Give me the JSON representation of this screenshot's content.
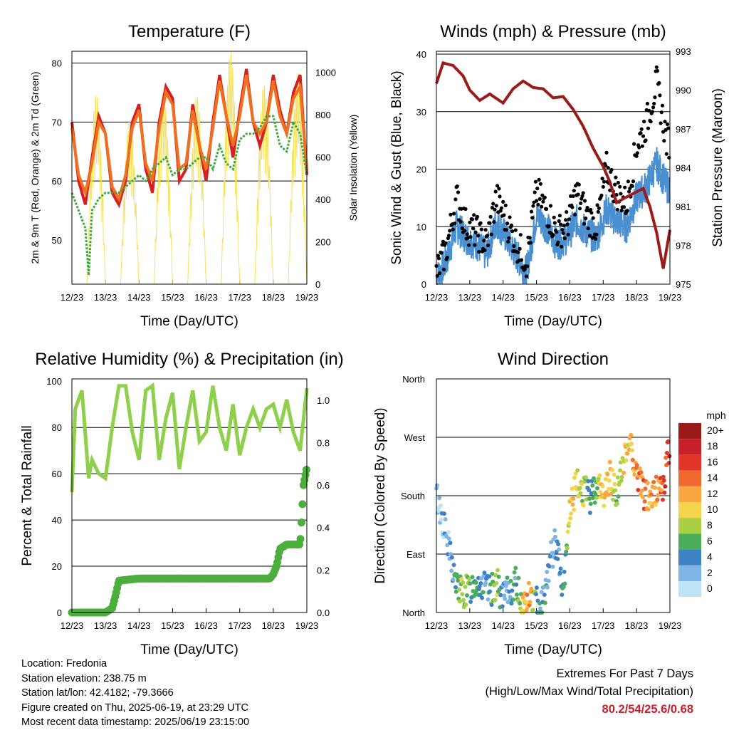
{
  "chart_data": [
    {
      "type": "line",
      "title": "Temperature (F)",
      "xlabel": "Time (Day/UTC)",
      "ylabel": "2m & 9m T (Red, Orange) & 2m Td (Green)",
      "y2label": "Solar Insolation (Yellow)",
      "x_ticks": [
        "12/23",
        "13/23",
        "14/23",
        "15/23",
        "16/23",
        "17/23",
        "18/23",
        "19/23"
      ],
      "y_ticks": [
        50,
        60,
        70,
        80
      ],
      "y2_ticks": [
        0,
        200,
        400,
        600,
        800,
        1000
      ],
      "ylim": [
        42.5,
        82
      ],
      "y2lim": [
        0,
        1100
      ],
      "grid": "horizontal at 60, 70, 80",
      "series": [
        {
          "name": "2m T",
          "color": "#d42020",
          "x": [
            0,
            0.2,
            0.4,
            0.6,
            0.8,
            1.0,
            1.2,
            1.4,
            1.6,
            1.8,
            2.0,
            2.2,
            2.4,
            2.6,
            2.8,
            3.0,
            3.2,
            3.4,
            3.6,
            3.8,
            4.0,
            4.2,
            4.4,
            4.6,
            4.8,
            5.0,
            5.2,
            5.4,
            5.6,
            5.8,
            6.0,
            6.2,
            6.4,
            6.6,
            6.8,
            7.0
          ],
          "y": [
            70,
            60,
            56,
            64,
            71,
            68,
            58,
            56,
            60,
            70,
            73,
            62,
            58,
            70,
            76,
            74,
            60,
            62,
            73,
            66,
            60,
            70,
            78,
            71,
            64,
            72,
            79,
            70,
            66,
            70,
            78,
            72,
            68,
            75,
            78,
            61
          ]
        },
        {
          "name": "9m T",
          "color": "#f07020",
          "x": [
            0,
            0.2,
            0.4,
            0.6,
            0.8,
            1.0,
            1.2,
            1.4,
            1.6,
            1.8,
            2.0,
            2.2,
            2.4,
            2.6,
            2.8,
            3.0,
            3.2,
            3.4,
            3.6,
            3.8,
            4.0,
            4.2,
            4.4,
            4.6,
            4.8,
            5.0,
            5.2,
            5.4,
            5.6,
            5.8,
            6.0,
            6.2,
            6.4,
            6.6,
            6.8,
            7.0
          ],
          "y": [
            69,
            61,
            58,
            63,
            70,
            68,
            59,
            57,
            61,
            69,
            72,
            63,
            60,
            69,
            75,
            73,
            62,
            63,
            72,
            66,
            62,
            69,
            77,
            71,
            66,
            71,
            78,
            70,
            68,
            70,
            77,
            71,
            68,
            74,
            76,
            62
          ]
        },
        {
          "name": "2m Td",
          "color": "#3daa3a",
          "x": [
            0,
            0.2,
            0.4,
            0.5,
            0.6,
            0.8,
            1.0,
            1.2,
            1.4,
            1.6,
            1.8,
            2.0,
            2.2,
            2.4,
            2.6,
            2.8,
            3.0,
            3.2,
            3.4,
            3.6,
            3.8,
            4.0,
            4.2,
            4.4,
            4.6,
            4.8,
            5.0,
            5.2,
            5.4,
            5.6,
            5.8,
            6.0,
            6.2,
            6.4,
            6.6,
            6.8,
            7.0
          ],
          "y": [
            58,
            55,
            52,
            44,
            55,
            57,
            58,
            58,
            58,
            59,
            60,
            61,
            60,
            62,
            63,
            64,
            61,
            62,
            62,
            63,
            64,
            64,
            62,
            66,
            63,
            62,
            67,
            68,
            68,
            69,
            71,
            71,
            66,
            65,
            70,
            68,
            61
          ]
        },
        {
          "name": "Solar Insolation",
          "color": "#f6e15a",
          "axis": "y2",
          "x": [
            0,
            0.5,
            1.0,
            1.5,
            2.0,
            2.5,
            3.0,
            3.5,
            4.0,
            4.5,
            5.0,
            5.5,
            6.0,
            6.5,
            7.0
          ],
          "y": [
            0,
            900,
            50,
            780,
            0,
            920,
            0,
            900,
            0,
            1100,
            0,
            950,
            0,
            1000,
            50
          ]
        }
      ]
    },
    {
      "type": "scatter",
      "title": "Winds (mph) & Pressure (mb)",
      "xlabel": "Time (Day/UTC)",
      "ylabel": "Sonic Wind & Gust (Blue, Black)",
      "y2label": "Station Pressure (Maroon)",
      "x_ticks": [
        "12/23",
        "13/23",
        "14/23",
        "15/23",
        "16/23",
        "17/23",
        "18/23",
        "19/23"
      ],
      "y_ticks": [
        0,
        10,
        20,
        30,
        40
      ],
      "y2_ticks": [
        975,
        978,
        981,
        984,
        987,
        990,
        993
      ],
      "ylim": [
        0,
        40.5
      ],
      "y2lim": [
        975,
        993
      ],
      "grid": "horizontal at 10, 20, 30, 40",
      "series": [
        {
          "name": "Gust",
          "color": "#000000",
          "x": [
            0,
            0.3,
            0.6,
            0.9,
            1.2,
            1.5,
            1.8,
            2.1,
            2.4,
            2.7,
            3.0,
            3.3,
            3.6,
            3.9,
            4.2,
            4.5,
            4.8,
            5.1,
            5.4,
            5.7,
            6.0,
            6.3,
            6.6,
            6.9
          ],
          "y": [
            2,
            6,
            15,
            10,
            9,
            7,
            15,
            11,
            7,
            4,
            16,
            13,
            9,
            10,
            16,
            12,
            10,
            20,
            16,
            14,
            24,
            28,
            35,
            25
          ]
        },
        {
          "name": "Wind",
          "color": "#4a8fd0",
          "x": [
            0,
            0.3,
            0.6,
            0.9,
            1.2,
            1.5,
            1.8,
            2.1,
            2.4,
            2.7,
            3.0,
            3.3,
            3.6,
            3.9,
            4.2,
            4.5,
            4.8,
            5.1,
            5.4,
            5.7,
            6.0,
            6.3,
            6.6,
            6.9
          ],
          "y": [
            1,
            4,
            10,
            8,
            7,
            5,
            11,
            8,
            5,
            2,
            12,
            10,
            7,
            8,
            11,
            9,
            8,
            13,
            11,
            10,
            15,
            17,
            21,
            17
          ]
        },
        {
          "name": "Station Pressure",
          "color": "#9b1b1b",
          "axis": "y2",
          "x": [
            0,
            0.2,
            0.5,
            0.8,
            1.0,
            1.3,
            1.6,
            2.0,
            2.3,
            2.6,
            2.9,
            3.2,
            3.5,
            3.8,
            4.1,
            4.4,
            4.7,
            5.0,
            5.2,
            5.4,
            5.6,
            5.9,
            6.2,
            6.4,
            6.6,
            6.8,
            7.0
          ],
          "y": [
            990.5,
            992.1,
            991.9,
            991.1,
            990.0,
            989.2,
            989.7,
            989.0,
            990.1,
            990.7,
            990.2,
            990.1,
            989.4,
            989.5,
            988.5,
            987.2,
            985.5,
            984.1,
            982.9,
            981.3,
            981.6,
            982.0,
            982.4,
            981.0,
            979.0,
            976.2,
            979.2
          ]
        }
      ]
    },
    {
      "type": "line",
      "title": "Relative Humidity (%) & Precipitation (in)",
      "xlabel": "Time (Day/UTC)",
      "ylabel": "Percent & Total Rainfall",
      "x_ticks": [
        "12/23",
        "13/23",
        "14/23",
        "15/23",
        "16/23",
        "17/23",
        "18/23",
        "19/23"
      ],
      "y_ticks": [
        0,
        20,
        40,
        60,
        80,
        100
      ],
      "y2_ticks": [
        "0.0",
        "0.2",
        "0.4",
        "0.6",
        "0.8",
        "1.0"
      ],
      "ylim": [
        0,
        101
      ],
      "y2lim": [
        0,
        1.1
      ],
      "grid": "horizontal at 20, 40, 60, 80",
      "series": [
        {
          "name": "Relative Humidity",
          "color": "#8ecf4b",
          "x": [
            0,
            0.1,
            0.3,
            0.5,
            0.6,
            0.8,
            1.0,
            1.2,
            1.4,
            1.6,
            1.8,
            2.0,
            2.2,
            2.4,
            2.6,
            2.8,
            3.0,
            3.2,
            3.4,
            3.6,
            3.8,
            4.0,
            4.2,
            4.4,
            4.6,
            4.8,
            5.0,
            5.2,
            5.4,
            5.6,
            5.8,
            6.0,
            6.2,
            6.4,
            6.6,
            6.8,
            7.0
          ],
          "y": [
            52,
            88,
            96,
            58,
            66,
            60,
            58,
            80,
            98,
            98,
            78,
            66,
            96,
            98,
            66,
            84,
            95,
            62,
            80,
            96,
            74,
            78,
            98,
            80,
            70,
            90,
            68,
            80,
            88,
            80,
            88,
            90,
            80,
            92,
            78,
            70,
            97
          ]
        },
        {
          "name": "Total Precipitation",
          "color": "#4caf3d",
          "axis": "y2",
          "x": [
            0,
            1.0,
            1.2,
            1.3,
            1.4,
            2.0,
            3.0,
            4.0,
            5.0,
            5.9,
            6.0,
            6.1,
            6.2,
            6.4,
            6.6,
            6.8,
            6.85,
            6.9,
            7.0
          ],
          "y": [
            0.0,
            0.0,
            0.02,
            0.08,
            0.15,
            0.16,
            0.16,
            0.16,
            0.16,
            0.16,
            0.18,
            0.22,
            0.3,
            0.32,
            0.32,
            0.32,
            0.45,
            0.6,
            0.68
          ]
        }
      ]
    },
    {
      "type": "scatter",
      "title": "Wind Direction",
      "xlabel": "Time (Day/UTC)",
      "ylabel": "Direction (Colored By Speed)",
      "x_ticks": [
        "12/23",
        "13/23",
        "14/23",
        "15/23",
        "16/23",
        "17/23",
        "18/23",
        "19/23"
      ],
      "y_ticks": [
        "North",
        "East",
        "South",
        "West",
        "North"
      ],
      "ylim": [
        0,
        360
      ],
      "grid": "horizontal at East, South, West, North",
      "legend": {
        "title": "mph",
        "labels": [
          "20+",
          "18",
          "16",
          "14",
          "12",
          "10",
          "8",
          "6",
          "4",
          "2",
          "0"
        ],
        "colors": [
          "#9b1b1b",
          "#c8202a",
          "#e2352a",
          "#f06a30",
          "#f9a73e",
          "#f2d54b",
          "#a8cf45",
          "#4cae5a",
          "#3d82c4",
          "#7fb5e6",
          "#bfe3f7"
        ],
        "placement": "right"
      },
      "series": [
        {
          "name": "Direction",
          "x": [
            0,
            0.2,
            0.4,
            0.6,
            0.8,
            1.0,
            1.2,
            1.4,
            1.6,
            1.8,
            2.0,
            2.2,
            2.4,
            2.6,
            2.8,
            3.0,
            3.2,
            3.4,
            3.6,
            3.8,
            4.0,
            4.2,
            4.4,
            4.6,
            4.8,
            5.0,
            5.2,
            5.4,
            5.6,
            5.8,
            6.0,
            6.2,
            6.4,
            6.6,
            6.8,
            7.0
          ],
          "y": [
            180,
            140,
            90,
            40,
            30,
            35,
            50,
            40,
            30,
            45,
            20,
            35,
            45,
            10,
            25,
            15,
            20,
            80,
            110,
            20,
            160,
            195,
            190,
            175,
            200,
            180,
            210,
            185,
            225,
            270,
            215,
            185,
            175,
            190,
            195,
            260
          ],
          "speed": [
            2,
            3,
            4,
            6,
            9,
            8,
            7,
            5,
            6,
            9,
            4,
            5,
            6,
            11,
            13,
            6,
            5,
            4,
            4,
            5,
            11,
            10,
            9,
            6,
            8,
            12,
            12,
            8,
            10,
            12,
            14,
            15,
            12,
            13,
            16,
            18
          ]
        }
      ]
    }
  ],
  "info": {
    "location": "Location: Fredonia",
    "elevation": "Station elevation: 238.75 m",
    "latlon": "Station lat/lon: 42.4182; -79.3666",
    "created": "Figure created on Thu, 2025-06-19, at 23:29 UTC",
    "recent": "Most recent data timestamp: 2025/06/19 23:15:00"
  },
  "extremes": {
    "title": "Extremes For Past 7 Days",
    "subtitle": "(High/Low/Max Wind/Total Precipitation)",
    "values": "80.2/54/25.6/0.68"
  }
}
